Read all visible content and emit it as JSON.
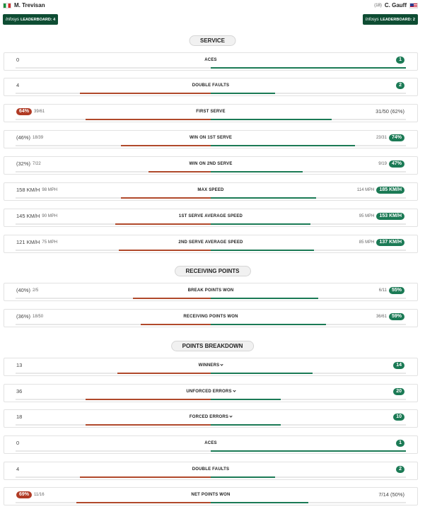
{
  "header": {
    "left_player": {
      "name": "M. Trevisan",
      "flag": "italy-flag-icon"
    },
    "right_player": {
      "name": "C. Gauff",
      "seed": "(18)",
      "flag": "usa-flag-icon"
    },
    "left_badge": {
      "brand": "Infosys",
      "text": "LEADERBOARD: 4"
    },
    "right_badge": {
      "brand": "Infosys",
      "text": "LEADERBOARD: 2"
    }
  },
  "colors": {
    "left_player": "#b0492b",
    "right_player": "#1b7a55",
    "badge": "#0e4d33"
  },
  "sections": [
    {
      "title": "SERVICE",
      "rows": [
        {
          "label": "ACES",
          "left": "0",
          "left_sub": "",
          "left_pill": false,
          "right": "1",
          "right_sub": "",
          "right_pill": true,
          "left_frac": 0.0,
          "right_frac": 1.0
        },
        {
          "label": "DOUBLE FAULTS",
          "left": "4",
          "left_sub": "",
          "left_pill": false,
          "right": "2",
          "right_sub": "",
          "right_pill": true,
          "left_frac": 0.67,
          "right_frac": 0.33
        },
        {
          "label": "FIRST SERVE",
          "left": "64%",
          "left_sub": "39/61",
          "left_pill": true,
          "right": "31/50 (62%)",
          "right_sub": "",
          "right_pill": false,
          "left_frac": 0.64,
          "right_frac": 0.62
        },
        {
          "label": "WIN ON 1ST SERVE",
          "left": "(46%)",
          "left_sub": "18/39",
          "left_pill": false,
          "right": "74%",
          "right_sub": "23/31",
          "right_pill": true,
          "left_frac": 0.46,
          "right_frac": 0.74
        },
        {
          "label": "WIN ON 2ND SERVE",
          "left": "(32%)",
          "left_sub": "7/22",
          "left_pill": false,
          "right": "47%",
          "right_sub": "9/19",
          "right_pill": true,
          "left_frac": 0.32,
          "right_frac": 0.47
        },
        {
          "label": "MAX SPEED",
          "left": "158 KM/H",
          "left_sub": "98 MPH",
          "left_pill": false,
          "right": "185 KM/H",
          "right_sub": "114 MPH",
          "right_pill": true,
          "left_frac": 0.46,
          "right_frac": 0.54
        },
        {
          "label": "1ST SERVE AVERAGE SPEED",
          "left": "145 KM/H",
          "left_sub": "90 MPH",
          "left_pill": false,
          "right": "153 KM/H",
          "right_sub": "95 MPH",
          "right_pill": true,
          "left_frac": 0.49,
          "right_frac": 0.51
        },
        {
          "label": "2ND SERVE AVERAGE SPEED",
          "left": "121 KM/H",
          "left_sub": "75 MPH",
          "left_pill": false,
          "right": "137 KM/H",
          "right_sub": "85 MPH",
          "right_pill": true,
          "left_frac": 0.47,
          "right_frac": 0.53
        }
      ]
    },
    {
      "title": "RECEIVING POINTS",
      "rows": [
        {
          "label": "BREAK POINTS WON",
          "left": "(40%)",
          "left_sub": "2/5",
          "left_pill": false,
          "right": "55%",
          "right_sub": "6/11",
          "right_pill": true,
          "left_frac": 0.4,
          "right_frac": 0.55
        },
        {
          "label": "RECEIVING POINTS WON",
          "left": "(36%)",
          "left_sub": "18/50",
          "left_pill": false,
          "right": "59%",
          "right_sub": "36/61",
          "right_pill": true,
          "left_frac": 0.36,
          "right_frac": 0.59
        }
      ]
    },
    {
      "title": "POINTS BREAKDOWN",
      "rows": [
        {
          "label": "WINNERS",
          "chevron": true,
          "left": "13",
          "left_sub": "",
          "left_pill": false,
          "right": "14",
          "right_sub": "",
          "right_pill": true,
          "left_frac": 0.48,
          "right_frac": 0.52
        },
        {
          "label": "UNFORCED ERRORS",
          "chevron": true,
          "left": "36",
          "left_sub": "",
          "left_pill": false,
          "right": "20",
          "right_sub": "",
          "right_pill": true,
          "left_frac": 0.64,
          "right_frac": 0.36
        },
        {
          "label": "FORCED ERRORS",
          "chevron": true,
          "left": "18",
          "left_sub": "",
          "left_pill": false,
          "right": "10",
          "right_sub": "",
          "right_pill": true,
          "left_frac": 0.64,
          "right_frac": 0.36
        },
        {
          "label": "ACES",
          "left": "0",
          "left_sub": "",
          "left_pill": false,
          "right": "1",
          "right_sub": "",
          "right_pill": true,
          "left_frac": 0.0,
          "right_frac": 1.0
        },
        {
          "label": "DOUBLE FAULTS",
          "left": "4",
          "left_sub": "",
          "left_pill": false,
          "right": "2",
          "right_sub": "",
          "right_pill": true,
          "left_frac": 0.67,
          "right_frac": 0.33
        },
        {
          "label": "NET POINTS WON",
          "left": "69%",
          "left_sub": "11/16",
          "left_pill": true,
          "right": "7/14 (50%)",
          "right_sub": "",
          "right_pill": false,
          "left_frac": 0.69,
          "right_frac": 0.5
        }
      ]
    }
  ]
}
